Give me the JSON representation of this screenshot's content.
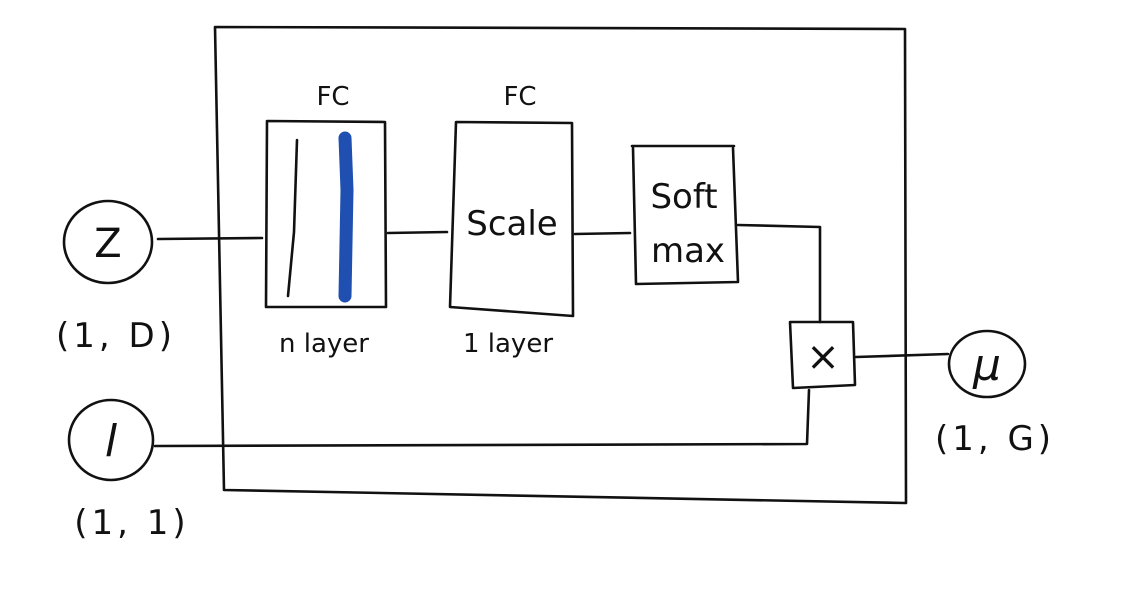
{
  "inputs": {
    "z": {
      "symbol": "Z",
      "shape": "(1, D)"
    },
    "l": {
      "symbol": "l",
      "shape": "(1, 1)"
    }
  },
  "output": {
    "symbol": "μ",
    "shape": "(1, G)"
  },
  "blocks": {
    "fc1": {
      "header": "FC",
      "caption": "n layer"
    },
    "fc2": {
      "header": "FC",
      "body": "Scale",
      "caption": "1 layer"
    },
    "softmax": {
      "line1": "Soft",
      "line2": "max"
    },
    "multiply": {
      "symbol": "×"
    }
  },
  "colors": {
    "ink": "#111111",
    "highlight": "#1f4fb0"
  }
}
